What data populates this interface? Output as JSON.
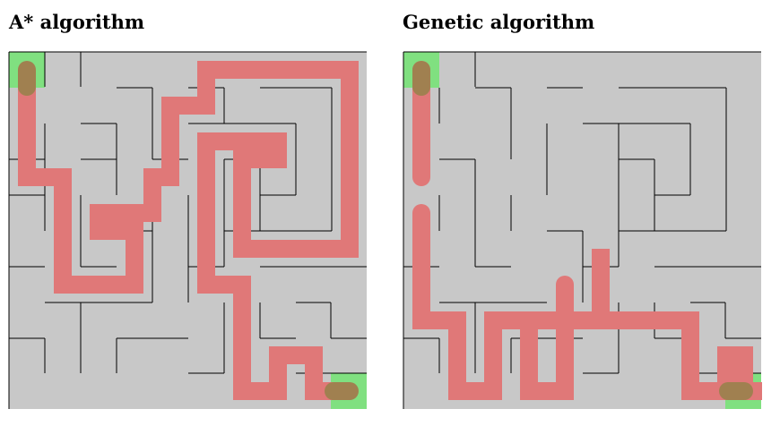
{
  "panels": [
    {
      "title": "A* algorithm"
    },
    {
      "title": "Genetic algorithm"
    }
  ],
  "colors": {
    "background": "#c8c8c8",
    "wall": "#000000",
    "path": "#e07878",
    "start_goal": "#80e080"
  },
  "maze": {
    "rows": 10,
    "cols": 10,
    "start_cell": [
      0,
      0
    ],
    "goal_cell": [
      9,
      9
    ]
  }
}
